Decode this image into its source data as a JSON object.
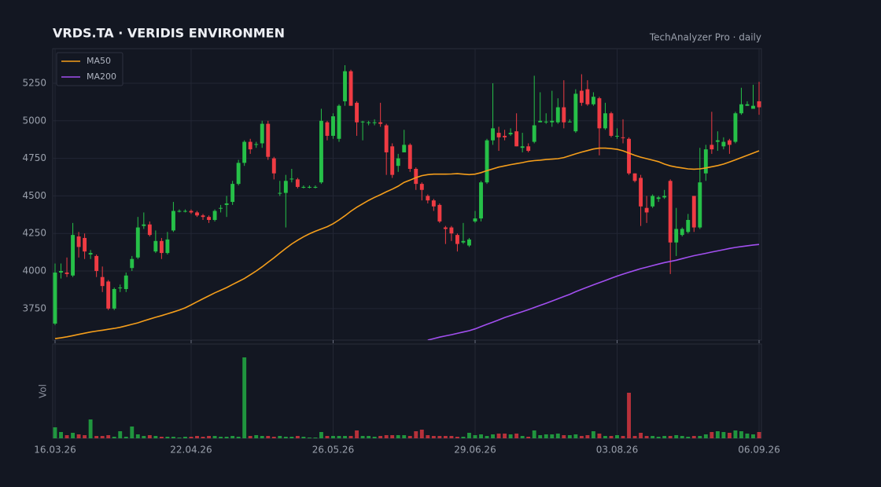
{
  "chart_data": {
    "type": "candlestick",
    "title": "VRDS.TA  ·  VERIDIS ENVIRONMEN",
    "subtitle": "TechAnalyzer Pro · daily",
    "volume_label": "Vol",
    "up_color": "#26c048",
    "down_color": "#ef3b43",
    "grid": true,
    "legend": "upper left",
    "ylim": [
      3540,
      5480
    ],
    "yticks": [
      3750,
      4000,
      4250,
      4500,
      4750,
      5000,
      5250
    ],
    "volume_ylim": [
      0,
      120
    ],
    "xticks": [
      {
        "value": 0,
        "label": "16.03.26"
      },
      {
        "value": 23,
        "label": "22.04.26"
      },
      {
        "value": 47,
        "label": "26.05.26"
      },
      {
        "value": 71,
        "label": "29.06.26"
      },
      {
        "value": 95,
        "label": "03.08.26"
      },
      {
        "value": 119,
        "label": "06.09.26"
      }
    ],
    "open": [
      3650,
      3990,
      3990,
      3970,
      4230,
      4220,
      4110,
      4100,
      3960,
      3930,
      3750,
      3890,
      3880,
      4020,
      4090,
      4300,
      4310,
      4130,
      4200,
      4120,
      4270,
      4400,
      4400,
      4400,
      4390,
      4370,
      4360,
      4340,
      4420,
      4440,
      4460,
      4580,
      4720,
      4860,
      4840,
      4850,
      4980,
      4750,
      4520,
      4520,
      4610,
      4610,
      4560,
      4560,
      4560,
      4590,
      4990,
      4900,
      4880,
      5130,
      5330,
      5120,
      4990,
      4990,
      4990,
      4990,
      4970,
      4830,
      4700,
      4790,
      4840,
      4680,
      4580,
      4500,
      4470,
      4440,
      4290,
      4290,
      4240,
      4190,
      4170,
      4330,
      4350,
      4590,
      4870,
      4920,
      4900,
      4910,
      4930,
      4820,
      4830,
      4860,
      4990,
      4990,
      4990,
      4990,
      5090,
      4990,
      4930,
      5200,
      5210,
      5110,
      5150,
      4950,
      5050,
      4900,
      4890,
      4880,
      4650,
      4620,
      4420,
      4430,
      4480,
      4490,
      4600,
      4190,
      4240,
      4260,
      4500,
      4290,
      4650,
      4840,
      4860,
      4830,
      4870,
      4860,
      5050,
      5100,
      5080,
      5130
    ],
    "high": [
      4050,
      4050,
      4090,
      4320,
      4260,
      4250,
      4140,
      4110,
      4030,
      3940,
      3890,
      3910,
      3990,
      4100,
      4360,
      4390,
      4330,
      4270,
      4220,
      4260,
      4460,
      4410,
      4410,
      4410,
      4400,
      4380,
      4370,
      4410,
      4440,
      4500,
      4600,
      4740,
      4870,
      4880,
      4860,
      5000,
      5000,
      4760,
      4600,
      4640,
      4680,
      4620,
      4570,
      4570,
      4570,
      5080,
      5000,
      5050,
      5110,
      5370,
      5340,
      5130,
      5000,
      5000,
      5010,
      5120,
      4980,
      4850,
      4780,
      4940,
      4850,
      4690,
      4590,
      4510,
      4480,
      4450,
      4300,
      4300,
      4250,
      4320,
      4220,
      4400,
      4600,
      4880,
      5250,
      4960,
      4940,
      4950,
      5050,
      4920,
      4850,
      5300,
      5190,
      5050,
      5200,
      5150,
      5270,
      5010,
      5210,
      5310,
      5270,
      5190,
      5160,
      5120,
      5060,
      4950,
      5010,
      4890,
      4650,
      4640,
      4500,
      4510,
      4500,
      4540,
      4610,
      4420,
      4290,
      4380,
      4500,
      4820,
      4840,
      5060,
      4930,
      4890,
      4880,
      5060,
      5220,
      5130,
      5240,
      5260
    ],
    "low": [
      3640,
      3950,
      3960,
      3960,
      4090,
      4080,
      4080,
      3960,
      3860,
      3740,
      3740,
      3860,
      3860,
      4000,
      4080,
      4280,
      4230,
      4120,
      4080,
      4110,
      4260,
      4390,
      4390,
      4380,
      4360,
      4340,
      4320,
      4330,
      4390,
      4360,
      4440,
      4570,
      4700,
      4780,
      4820,
      4820,
      4740,
      4610,
      4500,
      4290,
      4590,
      4550,
      4550,
      4550,
      4550,
      4580,
      4870,
      4880,
      4860,
      5100,
      5100,
      4900,
      4870,
      4970,
      4970,
      4960,
      4640,
      4620,
      4660,
      4790,
      4660,
      4540,
      4470,
      4450,
      4400,
      4320,
      4180,
      4200,
      4130,
      4180,
      4160,
      4320,
      4330,
      4580,
      4840,
      4800,
      4870,
      4900,
      4830,
      4790,
      4790,
      4850,
      4990,
      4980,
      4960,
      4980,
      4950,
      4990,
      4920,
      5100,
      5100,
      5100,
      4770,
      4940,
      4890,
      4880,
      4850,
      4640,
      4590,
      4300,
      4320,
      4420,
      4460,
      4480,
      3980,
      4100,
      4230,
      4250,
      4260,
      4280,
      4600,
      4780,
      4800,
      4810,
      4780,
      4850,
      5040,
      5100,
      5080,
      5040
    ],
    "close": [
      3990,
      4000,
      3980,
      4240,
      4160,
      4130,
      4120,
      4000,
      3900,
      3750,
      3880,
      3890,
      3970,
      4080,
      4290,
      4310,
      4240,
      4200,
      4120,
      4210,
      4400,
      4400,
      4400,
      4390,
      4370,
      4360,
      4340,
      4400,
      4420,
      4450,
      4580,
      4720,
      4860,
      4810,
      4845,
      4980,
      4760,
      4650,
      4520,
      4600,
      4615,
      4560,
      4560,
      4560,
      4560,
      5000,
      4900,
      5030,
      5100,
      5330,
      5100,
      4990,
      4995,
      4990,
      4990,
      4980,
      4790,
      4640,
      4750,
      4840,
      4680,
      4580,
      4540,
      4470,
      4430,
      4330,
      4280,
      4250,
      4180,
      4200,
      4210,
      4350,
      4590,
      4870,
      4950,
      4890,
      4890,
      4920,
      4830,
      4830,
      4800,
      4970,
      5000,
      4995,
      5000,
      5090,
      4990,
      4995,
      5180,
      5120,
      5110,
      5160,
      4950,
      5050,
      4900,
      4900,
      4885,
      4650,
      4600,
      4430,
      4390,
      4500,
      4490,
      4500,
      4190,
      4280,
      4280,
      4340,
      4290,
      4590,
      4810,
      4810,
      4870,
      4860,
      4840,
      5050,
      5110,
      5110,
      5100,
      5090
    ],
    "volume": [
      14,
      8,
      4,
      7,
      5,
      4,
      24,
      3,
      3,
      4,
      2,
      9,
      2,
      15,
      5,
      3,
      4,
      3,
      2,
      2,
      2,
      1,
      2,
      2,
      3,
      2,
      3,
      3,
      2,
      2,
      3,
      2,
      103,
      3,
      4,
      3,
      3,
      2,
      3,
      2,
      2,
      3,
      2,
      1,
      1,
      8,
      3,
      3,
      3,
      3,
      3,
      10,
      3,
      3,
      2,
      3,
      4,
      4,
      4,
      4,
      3,
      9,
      11,
      4,
      3,
      3,
      3,
      3,
      2,
      2,
      7,
      4,
      5,
      3,
      5,
      6,
      6,
      5,
      6,
      3,
      2,
      10,
      4,
      5,
      5,
      6,
      4,
      4,
      5,
      3,
      4,
      9,
      6,
      3,
      3,
      4,
      3,
      58,
      3,
      7,
      3,
      3,
      2,
      3,
      3,
      4,
      3,
      2,
      3,
      3,
      5,
      8,
      9,
      8,
      7,
      10,
      9,
      6,
      5,
      8
    ],
    "series": [
      {
        "name": "MA50",
        "color": "#f59e1b",
        "values": [
          3550,
          3555,
          3562,
          3570,
          3578,
          3586,
          3594,
          3600,
          3606,
          3612,
          3618,
          3625,
          3635,
          3645,
          3655,
          3668,
          3680,
          3692,
          3703,
          3715,
          3727,
          3740,
          3755,
          3775,
          3795,
          3815,
          3835,
          3855,
          3872,
          3890,
          3910,
          3930,
          3950,
          3975,
          4000,
          4028,
          4058,
          4088,
          4120,
          4150,
          4180,
          4205,
          4228,
          4248,
          4265,
          4280,
          4295,
          4315,
          4340,
          4368,
          4398,
          4425,
          4448,
          4470,
          4490,
          4508,
          4528,
          4545,
          4565,
          4590,
          4605,
          4622,
          4635,
          4642,
          4645,
          4645,
          4645,
          4646,
          4648,
          4645,
          4642,
          4645,
          4655,
          4668,
          4680,
          4692,
          4700,
          4708,
          4715,
          4722,
          4730,
          4735,
          4738,
          4742,
          4745,
          4748,
          4755,
          4768,
          4780,
          4792,
          4802,
          4812,
          4818,
          4818,
          4815,
          4810,
          4800,
          4785,
          4770,
          4758,
          4748,
          4738,
          4728,
          4712,
          4700,
          4692,
          4686,
          4680,
          4678,
          4680,
          4686,
          4694,
          4702,
          4712,
          4726,
          4740,
          4755,
          4770,
          4785,
          4800
        ]
      },
      {
        "name": "MA200",
        "color": "#a24ff0",
        "values": [
          null,
          null,
          null,
          null,
          null,
          null,
          null,
          null,
          null,
          null,
          null,
          null,
          null,
          null,
          null,
          null,
          null,
          null,
          null,
          null,
          null,
          null,
          null,
          null,
          null,
          null,
          null,
          null,
          null,
          null,
          null,
          null,
          null,
          null,
          null,
          null,
          null,
          null,
          null,
          null,
          null,
          null,
          null,
          null,
          null,
          null,
          null,
          null,
          null,
          null,
          null,
          null,
          null,
          null,
          null,
          null,
          null,
          null,
          null,
          null,
          null,
          null,
          null,
          3540,
          3550,
          3560,
          3568,
          3576,
          3585,
          3594,
          3603,
          3615,
          3630,
          3645,
          3660,
          3675,
          3690,
          3703,
          3716,
          3730,
          3743,
          3757,
          3771,
          3785,
          3800,
          3815,
          3830,
          3845,
          3862,
          3878,
          3893,
          3908,
          3922,
          3937,
          3952,
          3966,
          3979,
          3992,
          4004,
          4016,
          4026,
          4036,
          4046,
          4056,
          4064,
          4072,
          4082,
          4092,
          4102,
          4110,
          4118,
          4126,
          4134,
          4142,
          4150,
          4157,
          4163,
          4168,
          4173,
          4177
        ]
      }
    ]
  }
}
